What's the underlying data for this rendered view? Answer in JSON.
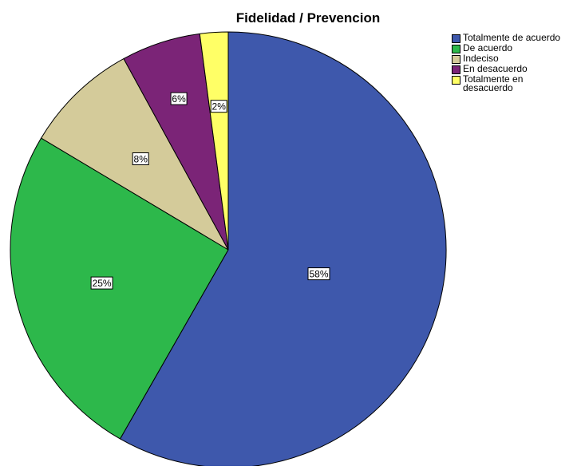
{
  "chart_data": {
    "type": "pie",
    "title": "Fidelidad / Prevencion",
    "categories": [
      "Totalmente de acuerdo",
      "De acuerdo",
      "Indeciso",
      "En desacuerdo",
      "Totalmente en desacuerdo"
    ],
    "values": [
      58.5,
      25.4,
      8.5,
      5.9,
      2.1
    ],
    "data_labels": [
      "58%",
      "25%",
      "8%",
      "6%",
      "2%"
    ],
    "colors": [
      "#3e58ac",
      "#2db84b",
      "#d4cb9a",
      "#7b2477",
      "#ffff66"
    ],
    "legend_position": "top-right",
    "start_angle": "12 o'clock",
    "direction": "clockwise"
  }
}
